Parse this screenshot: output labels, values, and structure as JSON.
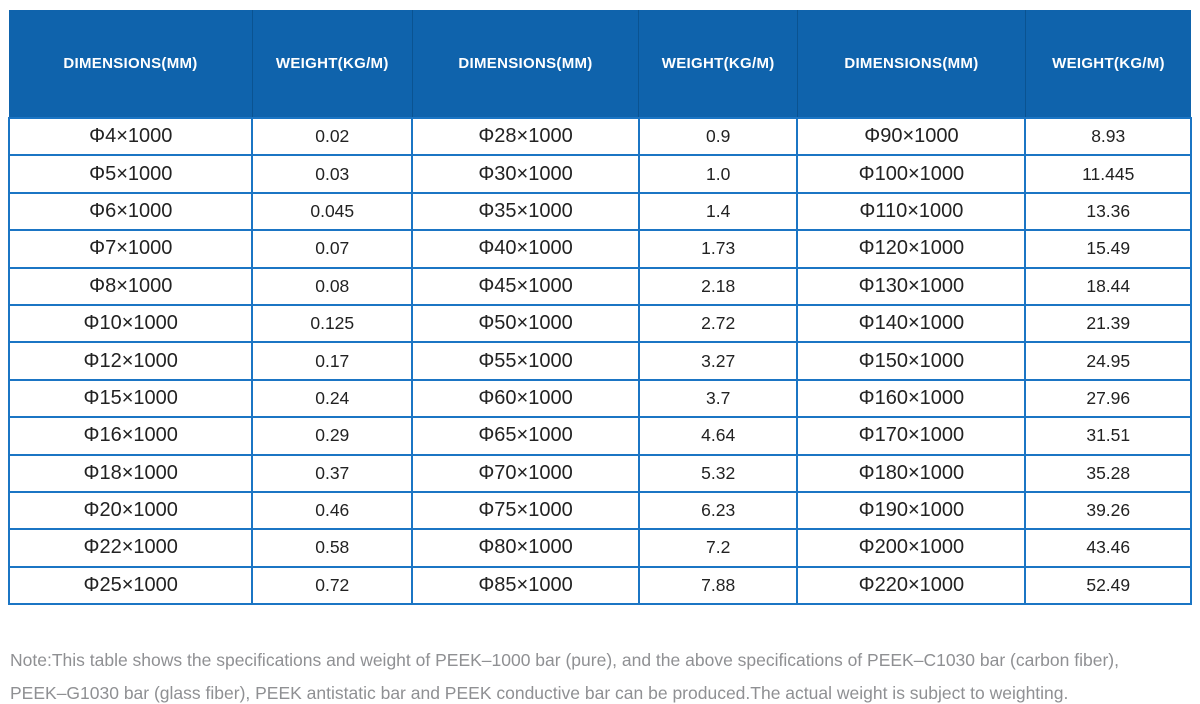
{
  "colors": {
    "header_bg": "#0f63ac",
    "header_text": "#ffffff",
    "header_divider": "#0a5391",
    "grid_border": "#1b75c4",
    "cell_text": "#222222",
    "note_text": "#8f9093",
    "page_bg": "#ffffff"
  },
  "table": {
    "header_labels": [
      "DIMENSIONS(MM)",
      "WEIGHT(KG/M)",
      "DIMENSIONS(MM)",
      "WEIGHT(KG/M)",
      "DIMENSIONS(MM)",
      "WEIGHT(KG/M)"
    ],
    "rows": [
      [
        "Φ4×1000",
        "0.02",
        "Φ28×1000",
        "0.9",
        "Φ90×1000",
        "8.93"
      ],
      [
        "Φ5×1000",
        "0.03",
        "Φ30×1000",
        "1.0",
        "Φ100×1000",
        "11.445"
      ],
      [
        "Φ6×1000",
        "0.045",
        "Φ35×1000",
        "1.4",
        "Φ110×1000",
        "13.36"
      ],
      [
        "Φ7×1000",
        "0.07",
        "Φ40×1000",
        "1.73",
        "Φ120×1000",
        "15.49"
      ],
      [
        "Φ8×1000",
        "0.08",
        "Φ45×1000",
        "2.18",
        "Φ130×1000",
        "18.44"
      ],
      [
        "Φ10×1000",
        "0.125",
        "Φ50×1000",
        "2.72",
        "Φ140×1000",
        "21.39"
      ],
      [
        "Φ12×1000",
        "0.17",
        "Φ55×1000",
        "3.27",
        "Φ150×1000",
        "24.95"
      ],
      [
        "Φ15×1000",
        "0.24",
        "Φ60×1000",
        "3.7",
        "Φ160×1000",
        "27.96"
      ],
      [
        "Φ16×1000",
        "0.29",
        "Φ65×1000",
        "4.64",
        "Φ170×1000",
        "31.51"
      ],
      [
        "Φ18×1000",
        "0.37",
        "Φ70×1000",
        "5.32",
        "Φ180×1000",
        "35.28"
      ],
      [
        "Φ20×1000",
        "0.46",
        "Φ75×1000",
        "6.23",
        "Φ190×1000",
        "39.26"
      ],
      [
        "Φ22×1000",
        "0.58",
        "Φ80×1000",
        "7.2",
        "Φ200×1000",
        "43.46"
      ],
      [
        "Φ25×1000",
        "0.72",
        "Φ85×1000",
        "7.88",
        "Φ220×1000",
        "52.49"
      ]
    ]
  },
  "note": {
    "lines": [
      "Note:This table shows the specifications and weight of PEEK–1000 bar (pure), and the above specifications of PEEK–C1030 bar (carbon fiber),",
      "PEEK–G1030 bar (glass fiber), PEEK antistatic bar and PEEK conductive bar can be produced.The actual weight is subject to weighting."
    ]
  }
}
